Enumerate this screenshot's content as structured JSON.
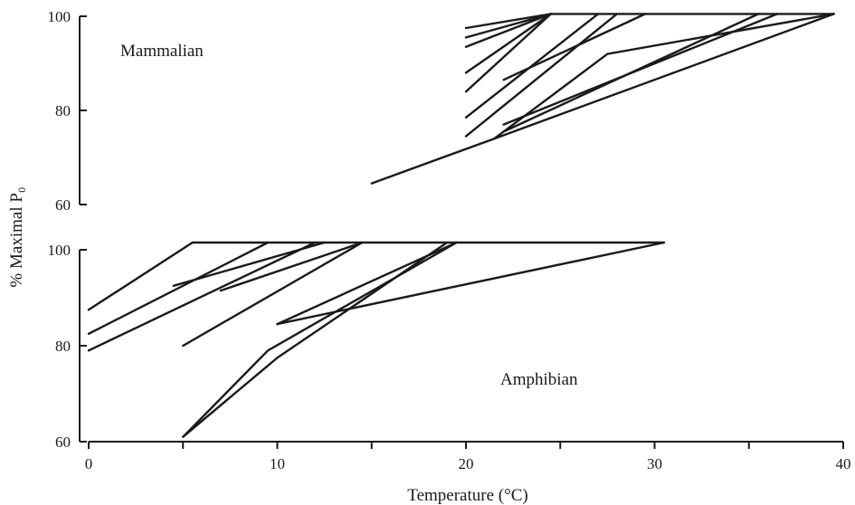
{
  "chart_data": [
    {
      "type": "line",
      "title": "",
      "panel_label": "Mammalian",
      "xlabel": "",
      "ylabel": "% Maximal P₀",
      "xlim": [
        0,
        40
      ],
      "ylim": [
        60,
        100
      ],
      "y_ticks": [
        60,
        80,
        100
      ],
      "grid": false,
      "series": [
        {
          "points": [
            [
              15.0,
              64.5
            ],
            [
              21.5,
              74.0
            ],
            [
              39.5,
              100.5
            ]
          ]
        },
        {
          "points": [
            [
              21.5,
              74.0
            ],
            [
              27.5,
              92.0
            ],
            [
              39.5,
              100.5
            ]
          ]
        },
        {
          "points": [
            [
              20.0,
              74.5
            ],
            [
              28.0,
              100.5
            ]
          ]
        },
        {
          "points": [
            [
              20.0,
              78.5
            ],
            [
              27.0,
              100.5
            ]
          ]
        },
        {
          "points": [
            [
              20.0,
              84.0
            ],
            [
              24.5,
              100.5
            ]
          ]
        },
        {
          "points": [
            [
              20.0,
              88.0
            ],
            [
              24.5,
              100.5
            ]
          ]
        },
        {
          "points": [
            [
              20.0,
              93.5
            ],
            [
              24.5,
              100.5
            ]
          ]
        },
        {
          "points": [
            [
              20.0,
              95.5
            ],
            [
              24.5,
              100.5
            ]
          ]
        },
        {
          "points": [
            [
              20.0,
              97.5
            ],
            [
              24.5,
              100.5
            ]
          ]
        },
        {
          "points": [
            [
              22.0,
              75.5
            ],
            [
              35.5,
              100.5
            ]
          ]
        },
        {
          "points": [
            [
              22.0,
              77.0
            ],
            [
              36.5,
              100.5
            ]
          ]
        },
        {
          "points": [
            [
              22.0,
              86.5
            ],
            [
              29.5,
              100.5
            ]
          ]
        },
        {
          "points": [
            [
              24.5,
              100.5
            ],
            [
              39.5,
              100.5
            ]
          ]
        }
      ]
    },
    {
      "type": "line",
      "title": "",
      "panel_label": "Amphibian",
      "xlabel": "Temperature (°C)",
      "ylabel": "",
      "xlim": [
        0,
        40
      ],
      "ylim": [
        60,
        100
      ],
      "x_ticks": [
        0,
        10,
        20,
        30,
        40
      ],
      "y_ticks": [
        60,
        80,
        100
      ],
      "grid": false,
      "series": [
        {
          "points": [
            [
              0.0,
              87.5
            ],
            [
              5.5,
              101.5
            ]
          ]
        },
        {
          "points": [
            [
              0.0,
              82.5
            ],
            [
              9.5,
              101.5
            ]
          ]
        },
        {
          "points": [
            [
              0.0,
              79.0
            ],
            [
              12.0,
              101.5
            ]
          ]
        },
        {
          "points": [
            [
              4.5,
              92.5
            ],
            [
              12.5,
              101.5
            ]
          ]
        },
        {
          "points": [
            [
              7.0,
              91.5
            ],
            [
              14.5,
              101.5
            ]
          ]
        },
        {
          "points": [
            [
              5.0,
              80.0
            ],
            [
              14.5,
              101.5
            ]
          ]
        },
        {
          "points": [
            [
              5.0,
              61.0
            ],
            [
              9.5,
              79.0
            ],
            [
              19.5,
              101.5
            ]
          ]
        },
        {
          "points": [
            [
              5.0,
              61.0
            ],
            [
              10.0,
              77.5
            ],
            [
              19.0,
              101.5
            ]
          ]
        },
        {
          "points": [
            [
              10.0,
              84.5
            ],
            [
              30.5,
              101.5
            ]
          ]
        },
        {
          "points": [
            [
              10.0,
              84.5
            ],
            [
              19.5,
              101.5
            ]
          ]
        },
        {
          "points": [
            [
              5.5,
              101.5
            ],
            [
              30.5,
              101.5
            ]
          ]
        }
      ]
    }
  ]
}
